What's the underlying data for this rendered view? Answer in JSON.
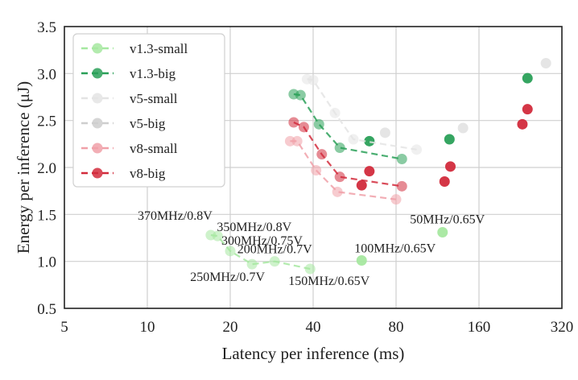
{
  "chart_data": {
    "type": "scatter",
    "xlabel": "Latency per inference (ms)",
    "ylabel": "Energy per inference (μJ)",
    "x_scale": "log2",
    "xlim": [
      5,
      320
    ],
    "ylim": [
      0.5,
      3.5
    ],
    "x_ticks": [
      5,
      10,
      20,
      40,
      80,
      160,
      320
    ],
    "y_ticks": [
      0.5,
      1.0,
      1.5,
      2.0,
      2.5,
      3.0,
      3.5
    ],
    "x_tick_labels": [
      "5",
      "10",
      "20",
      "40",
      "80",
      "160",
      "320"
    ],
    "y_tick_labels": [
      "0.5",
      "1.0",
      "1.5",
      "2.0",
      "2.5",
      "3.0",
      "3.5"
    ],
    "grid": true,
    "legend": "top-left",
    "series": [
      {
        "name": "v1.3-small",
        "color": "#a6e8a0",
        "front": [
          [
            17.0,
            1.28
          ],
          [
            18.0,
            1.27
          ],
          [
            20.0,
            1.11
          ],
          [
            24.0,
            0.97
          ],
          [
            29.0,
            1.0
          ],
          [
            39.0,
            0.92
          ]
        ],
        "extra": [
          [
            60.0,
            1.01
          ],
          [
            118.0,
            1.31
          ]
        ]
      },
      {
        "name": "v1.3-big",
        "color": "#2aa058",
        "front": [
          [
            34.0,
            2.78
          ],
          [
            36.0,
            2.77
          ],
          [
            42.0,
            2.46
          ],
          [
            50.0,
            2.21
          ],
          [
            84.0,
            2.09
          ]
        ],
        "extra": [
          [
            64.0,
            2.28
          ],
          [
            125.0,
            2.3
          ],
          [
            240.0,
            2.95
          ]
        ]
      },
      {
        "name": "v5-small",
        "color": "#e4e4e4",
        "front": [
          [
            38.0,
            2.94
          ],
          [
            40.0,
            2.93
          ],
          [
            48.0,
            2.58
          ],
          [
            56.0,
            2.3
          ],
          [
            95.0,
            2.19
          ]
        ],
        "extra": [
          [
            73.0,
            2.37
          ],
          [
            140.0,
            2.42
          ],
          [
            280.0,
            3.11
          ]
        ]
      },
      {
        "name": "v5-big",
        "color": "#cecece",
        "front": [],
        "extra": []
      },
      {
        "name": "v8-small",
        "color": "#f0a0a8",
        "front": [
          [
            33.0,
            2.28
          ],
          [
            35.0,
            2.28
          ],
          [
            41.0,
            1.97
          ],
          [
            49.0,
            1.74
          ],
          [
            80.0,
            1.66
          ]
        ],
        "extra": []
      },
      {
        "name": "v8-big",
        "color": "#d22b3c",
        "front": [
          [
            34.0,
            2.48
          ],
          [
            37.0,
            2.43
          ],
          [
            43.0,
            2.14
          ],
          [
            50.0,
            1.9
          ],
          [
            84.0,
            1.8
          ]
        ],
        "extra": [
          [
            60.0,
            1.81
          ],
          [
            64.0,
            1.96
          ],
          [
            120.0,
            1.85
          ],
          [
            126.0,
            2.01
          ],
          [
            230.0,
            2.46
          ],
          [
            240.0,
            2.62
          ]
        ]
      }
    ],
    "annotations": [
      {
        "text": "370MHz/0.8V",
        "x": 17.0,
        "y": 1.28,
        "anchor": "end",
        "dx": 2,
        "dy": -19
      },
      {
        "text": "350MHz/0.8V",
        "x": 18.0,
        "y": 1.27,
        "anchor": "start",
        "dx": -1,
        "dy": -6
      },
      {
        "text": "300MHz/0.75V",
        "x": 20.0,
        "y": 1.11,
        "anchor": "start",
        "dx": -11,
        "dy": -8
      },
      {
        "text": "200MHz/0.7V",
        "x": 29.0,
        "y": 1.0,
        "anchor": "middle",
        "dx": 0,
        "dy": -10
      },
      {
        "text": "250MHz/0.7V",
        "x": 24.0,
        "y": 0.97,
        "anchor": "end",
        "dx": 16,
        "dy": 21
      },
      {
        "text": "150MHz/0.65V",
        "x": 39.0,
        "y": 0.92,
        "anchor": "start",
        "dx": -27,
        "dy": 20
      },
      {
        "text": "100MHz/0.65V",
        "x": 60.0,
        "y": 1.01,
        "anchor": "start",
        "dx": -9,
        "dy": -10
      },
      {
        "text": "50MHz/0.65V",
        "x": 118.0,
        "y": 1.31,
        "anchor": "middle",
        "dx": 6,
        "dy": -11
      }
    ]
  }
}
